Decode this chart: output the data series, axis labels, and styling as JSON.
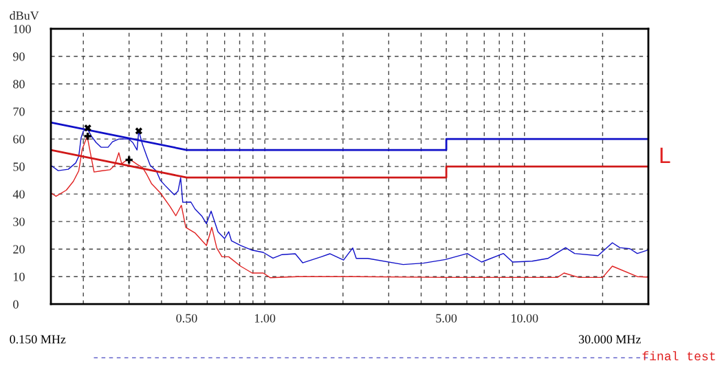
{
  "chart_data": {
    "type": "line",
    "ylabel": "dBuV",
    "log": "x",
    "xlim": [
      0.15,
      30
    ],
    "ylim": [
      0,
      100
    ],
    "xticks": [
      {
        "value": 0.2,
        "label": null
      },
      {
        "value": 0.3,
        "label": null
      },
      {
        "value": 0.4,
        "label": null
      },
      {
        "value": 0.5,
        "label": "0.50"
      },
      {
        "value": 0.6,
        "label": null
      },
      {
        "value": 0.7,
        "label": null
      },
      {
        "value": 0.8,
        "label": null
      },
      {
        "value": 0.9,
        "label": null
      },
      {
        "value": 1,
        "label": "1.00"
      },
      {
        "value": 2,
        "label": null
      },
      {
        "value": 3,
        "label": null
      },
      {
        "value": 4,
        "label": null
      },
      {
        "value": 5,
        "label": "5.00"
      },
      {
        "value": 6,
        "label": null
      },
      {
        "value": 7,
        "label": null
      },
      {
        "value": 8,
        "label": null
      },
      {
        "value": 9,
        "label": null
      },
      {
        "value": 10,
        "label": "10.00"
      },
      {
        "value": 20,
        "label": null
      }
    ],
    "yticks": [
      0,
      10,
      20,
      30,
      40,
      50,
      60,
      70,
      80,
      90,
      100
    ],
    "grid": true,
    "series": [
      {
        "color": "#1010c8",
        "x": [
          0.15,
          0.16,
          0.175,
          0.187,
          0.192,
          0.196,
          0.2,
          0.208,
          0.215,
          0.224,
          0.234,
          0.249,
          0.259,
          0.274,
          0.299,
          0.31,
          0.322,
          0.327,
          0.338,
          0.351,
          0.362,
          0.382,
          0.396,
          0.414,
          0.432,
          0.448,
          0.463,
          0.474,
          0.483,
          0.519,
          0.538,
          0.572,
          0.596,
          0.621,
          0.66,
          0.7,
          0.726,
          0.744,
          0.806,
          0.894,
          0.986,
          1.075,
          1.165,
          1.31,
          1.4,
          1.65,
          1.78,
          2.01,
          2.18,
          2.25,
          2.49,
          3.41,
          4.08,
          4.96,
          6.02,
          6.84,
          8.29,
          9.0,
          10.7,
          12.3,
          14.4,
          15.6,
          19.2,
          21.8,
          23.3,
          25.5,
          27.2,
          30
        ],
        "values": [
          50.4,
          48.5,
          49,
          51.3,
          53.7,
          60.4,
          62.9,
          63.5,
          61,
          58.7,
          57,
          57,
          59,
          60,
          60,
          58.7,
          56,
          62.9,
          58,
          53.7,
          50.4,
          48.4,
          45,
          43,
          41.2,
          39.7,
          41,
          45.9,
          37,
          37.1,
          34.6,
          32,
          29.2,
          33.8,
          26.3,
          23.8,
          26.3,
          23,
          21.3,
          19.6,
          18.8,
          16.7,
          18,
          18.3,
          15,
          17.2,
          18.3,
          16,
          20.4,
          16.6,
          16.6,
          14.4,
          14.9,
          16.2,
          18.4,
          15.3,
          18.4,
          15.3,
          15.6,
          16.6,
          20.5,
          18.4,
          17.6,
          22.3,
          20.5,
          20.1,
          18.4,
          19.7
        ]
      },
      {
        "color": "#e02020",
        "x": [
          0.15,
          0.157,
          0.172,
          0.183,
          0.192,
          0.198,
          0.207,
          0.214,
          0.22,
          0.234,
          0.253,
          0.264,
          0.274,
          0.281,
          0.299,
          0.322,
          0.338,
          0.351,
          0.366,
          0.396,
          0.432,
          0.454,
          0.477,
          0.496,
          0.538,
          0.596,
          0.625,
          0.653,
          0.684,
          0.726,
          0.806,
          0.894,
          0.986,
          1.05,
          1.34,
          2.22,
          5.0,
          13.4,
          14.2,
          16.2,
          20,
          21.8,
          27.2,
          30
        ],
        "values": [
          40.4,
          39.2,
          41.4,
          44.6,
          48.4,
          56.3,
          61,
          53.8,
          48,
          48.4,
          48.8,
          50.4,
          55,
          51,
          52.9,
          50.8,
          49.6,
          47.1,
          43.8,
          40.4,
          35.4,
          32.1,
          35.9,
          27.9,
          25.9,
          21.3,
          27.9,
          20.4,
          17.2,
          17.2,
          13.8,
          11.3,
          11.3,
          9.6,
          10,
          10,
          9.7,
          9.7,
          11.3,
          9.7,
          9.7,
          13.8,
          10,
          9.8
        ]
      },
      {
        "color": "#1010c8",
        "x": [
          0.15,
          0.5,
          5,
          5,
          30
        ],
        "values": [
          66,
          56,
          56,
          60,
          60
        ]
      },
      {
        "color": "#d01818",
        "x": [
          0.15,
          0.5,
          5,
          5,
          30
        ],
        "values": [
          56,
          46,
          46,
          50,
          50
        ]
      },
      {
        "type": "scatter",
        "marker": "cross",
        "color": "#000000",
        "x": [
          0.208,
          0.327
        ],
        "values": [
          64,
          62.9
        ]
      },
      {
        "type": "scatter",
        "marker": "plus",
        "color": "#000000",
        "x": [
          0.208,
          0.3
        ],
        "values": [
          61,
          52.4
        ]
      }
    ],
    "annotations": [
      "0.150 MHz",
      "30.000 MHz",
      "L",
      "final test"
    ]
  }
}
